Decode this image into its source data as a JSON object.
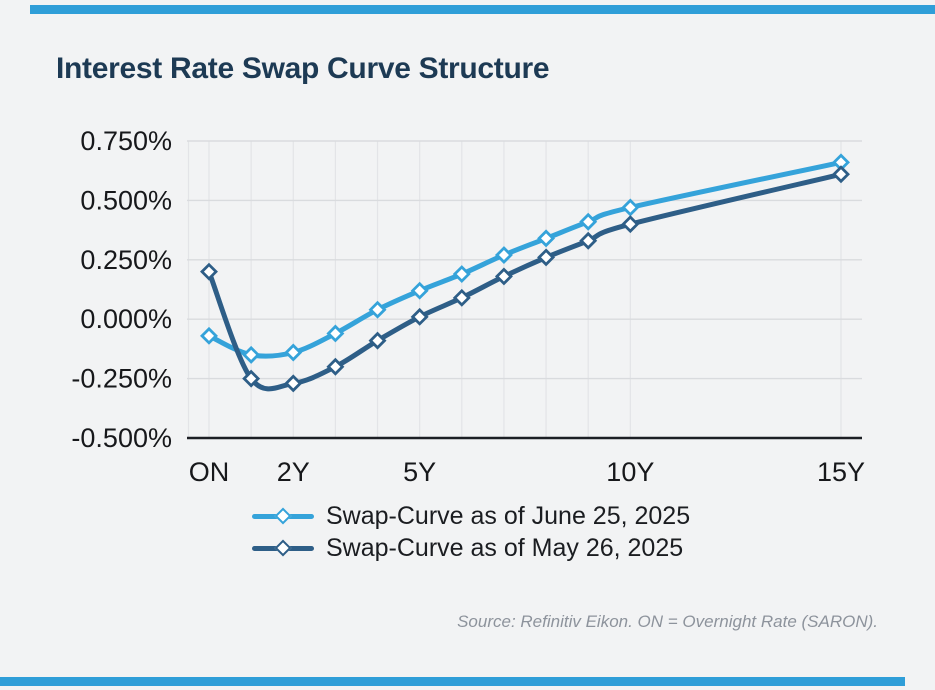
{
  "page": {
    "background_color": "#f2f3f4",
    "accent_bar_color": "#2f9ed8",
    "title": "Interest Rate Swap Curve Structure",
    "title_color": "#1d3a54",
    "source_note": "Source: Refinitiv Eikon. ON = Overnight Rate (SARON)."
  },
  "chart_data": {
    "type": "line",
    "title": "Interest Rate Swap Curve Structure",
    "xlabel": "",
    "ylabel": "",
    "x_unit": "tenor in years (ON = overnight)",
    "tenors": [
      0,
      1,
      2,
      3,
      4,
      5,
      6,
      7,
      8,
      9,
      10,
      15
    ],
    "x_ticks": [
      {
        "t": 0,
        "label": "ON"
      },
      {
        "t": 2,
        "label": "2Y"
      },
      {
        "t": 5,
        "label": "5Y"
      },
      {
        "t": 10,
        "label": "10Y"
      },
      {
        "t": 15,
        "label": "15Y"
      }
    ],
    "y_ticks": [
      {
        "value": 0.75,
        "label": "0.750%"
      },
      {
        "value": 0.5,
        "label": "0.500%"
      },
      {
        "value": 0.25,
        "label": "0.250%"
      },
      {
        "value": 0.0,
        "label": "0.000%"
      },
      {
        "value": -0.25,
        "label": "-0.250%"
      },
      {
        "value": -0.5,
        "label": "-0.500%"
      }
    ],
    "ylim": [
      -0.5,
      0.75
    ],
    "grid": true,
    "marker": "open-diamond",
    "legend_position": "bottom",
    "series": [
      {
        "name": "Swap-Curve as of June 25, 2025",
        "color": "#35a3da",
        "values": [
          -0.07,
          -0.15,
          -0.14,
          -0.06,
          0.04,
          0.12,
          0.19,
          0.27,
          0.34,
          0.41,
          0.47,
          0.66
        ]
      },
      {
        "name": "Swap-Curve as of May 26, 2025",
        "color": "#2e5e87",
        "values": [
          0.2,
          -0.25,
          -0.27,
          -0.2,
          -0.09,
          0.01,
          0.09,
          0.18,
          0.26,
          0.33,
          0.4,
          0.61
        ]
      }
    ]
  }
}
